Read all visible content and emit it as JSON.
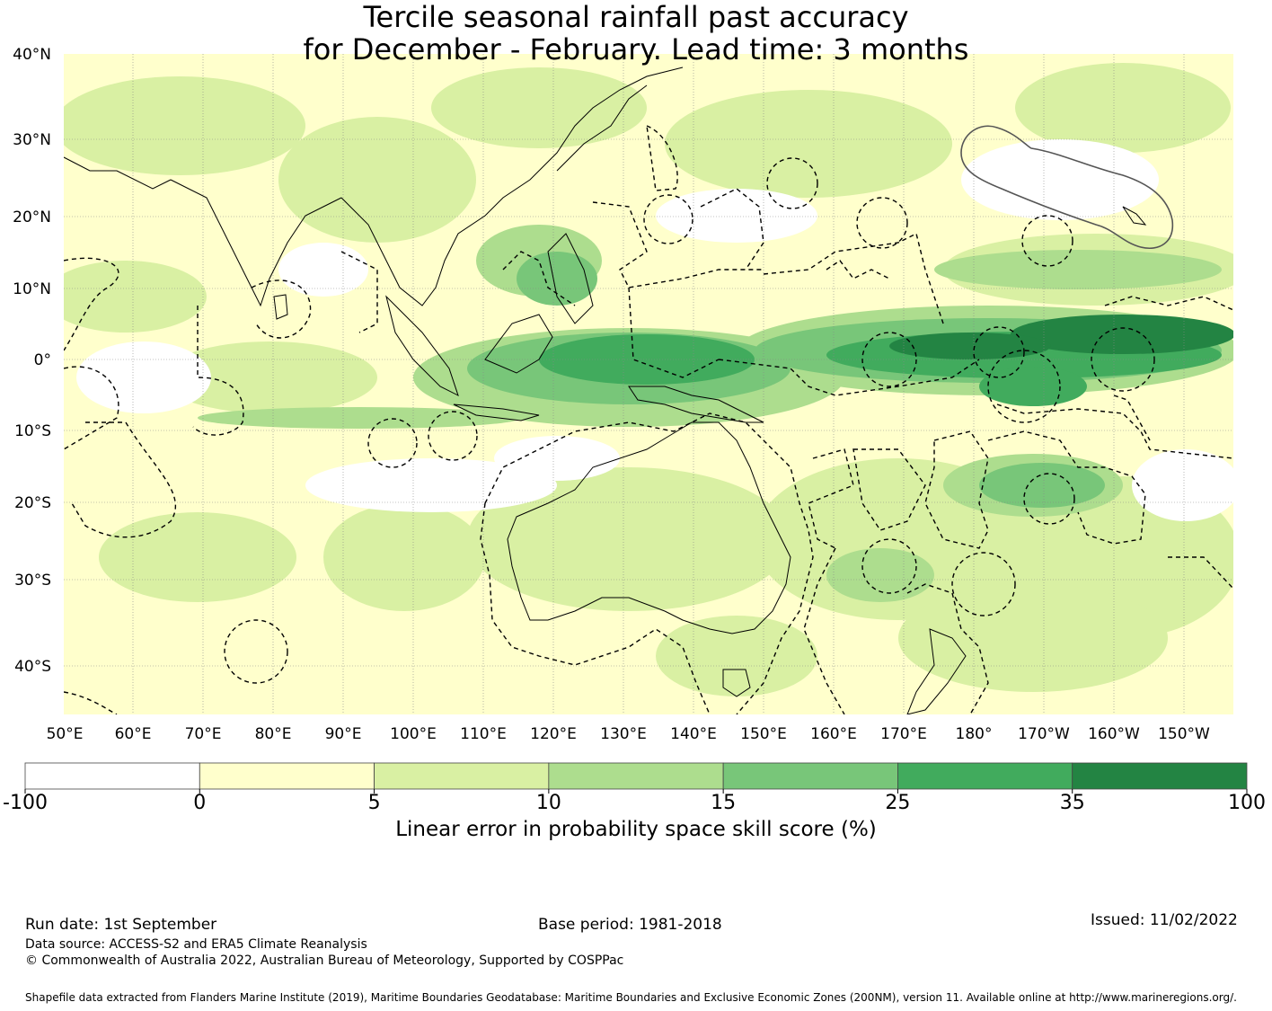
{
  "title_line1": "Tercile seasonal rainfall past accuracy",
  "title_line2": "for December - February. Lead time: 3 months",
  "lat_labels": [
    "40°N",
    "30°N",
    "20°N",
    "10°N",
    "0°",
    "10°S",
    "20°S",
    "30°S",
    "40°S"
  ],
  "lon_labels": [
    "50°E",
    "60°E",
    "70°E",
    "80°E",
    "90°E",
    "100°E",
    "110°E",
    "120°E",
    "130°E",
    "140°E",
    "150°E",
    "160°E",
    "170°E",
    "180°",
    "170°W",
    "160°W",
    "150°W"
  ],
  "colorbar": {
    "ticks": [
      "-100",
      "0",
      "5",
      "10",
      "15",
      "25",
      "35",
      "100"
    ],
    "colors": [
      "#ffffff",
      "#ffffcc",
      "#d9f0a3",
      "#addd8e",
      "#78c679",
      "#41ab5d",
      "#238443"
    ],
    "label": "Linear error in probability space skill score (%)"
  },
  "footer": {
    "run_date": "Run date: 1st September",
    "base_period": "Base period: 1981-2018",
    "issued": "Issued: 11/02/2022",
    "data_source": "Data source: ACCESS-S2 and ERA5 Climate Reanalysis",
    "copyright": "© Commonwealth of Australia 2022, Australian Bureau of Meteorology, Supported by COSPPac",
    "shapefile": "Shapefile data extracted from Flanders Marine Institute (2019), Maritime Boundaries Geodatabase: Maritime Boundaries and Exclusive Economic Zones (200NM), version 11. Available online at http://www.marineregions.org/."
  }
}
